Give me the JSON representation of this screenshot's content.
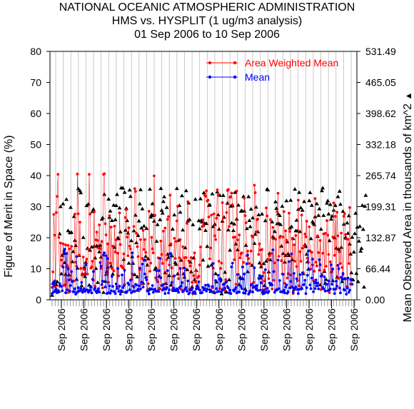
{
  "chart_data": {
    "type": "scatter",
    "title_lines": [
      "NATIONAL OCEANIC ATMOSPHERIC ADMINISTRATION",
      "HMS vs. HYSPLIT (1 ug/m3 analysis)",
      "01 Sep 2006 to 10 Sep 2006"
    ],
    "ylabel_left": "Figure of Merit in Space (%)",
    "ylabel_right": "Mean Observed Area in thousands of km^2",
    "right_axis_marker": "▲",
    "ylim_left": [
      0,
      80
    ],
    "left_ticks": [
      0,
      10,
      20,
      30,
      40,
      50,
      60,
      70,
      80
    ],
    "right_tick_labels": [
      "0.00",
      "66.44",
      "132.87",
      "199.31",
      "265.74",
      "332.18",
      "398.62",
      "465.05",
      "531.49"
    ],
    "x_tick_label": "Sep 2006",
    "x_tick_count": 14,
    "x_count": 360,
    "series": [
      {
        "name": "Area Weighted Mean",
        "color": "#ff0000",
        "values": [
          4.0,
          9.0,
          27.5,
          20.8,
          4.2,
          28.1,
          33.3,
          40.4,
          20.1,
          4.4,
          18.3,
          12.8,
          10.9,
          18.0,
          4.6,
          4.8,
          17.7,
          2.2,
          11.0,
          17.5,
          2.4,
          16.4,
          6.5,
          17.2,
          5.9,
          2.6,
          6.1,
          27.6,
          12.1,
          10.8,
          40.5,
          27.7,
          14.4,
          25.0,
          10.1,
          3.1,
          7.9,
          13.8,
          9.8,
          8.4,
          11.3,
          13.1,
          8.3,
          16.3,
          40.4,
          27.6,
          10.2,
          10.6,
          12.4,
          6.3,
          28.3,
          4.4,
          19.3,
          21.8,
          19.1,
          16.6,
          24.1,
          16.5,
          10.1,
          18.8,
          3.8,
          40.4,
          40.6,
          24.5,
          20.9,
          8.2,
          18.0,
          5.6,
          27.1,
          11.8,
          23.4,
          10.0,
          17.3,
          9.3,
          23.7,
          15.4,
          19.3,
          4.2,
          15.0,
          7.7,
          28.0,
          17.8,
          10.9,
          10.6,
          10.2,
          14.8,
          4.9,
          26.5,
          29.0,
          20.2,
          14.2,
          23.2,
          17.3,
          16.4,
          6.6,
          8.3,
          4.4,
          23.6,
          35.8,
          34.9,
          21.4,
          17.1,
          13.9,
          2.9,
          9.7,
          19.4,
          5.1,
          13.3,
          22.3,
          16.2,
          19.4,
          15.3,
          7.3,
          3.2,
          5.2,
          28.5,
          9.2,
          11.8,
          20.1,
          16.4,
          15.1,
          39.9,
          27.2,
          7.1,
          6.5,
          5.8,
          13.5,
          3.7,
          3.5,
          18.9,
          14.6,
          11.7,
          22.1,
          3.8,
          23.1,
          3.4,
          12.9,
          25.9,
          26.8,
          11.2,
          33.7,
          18.0,
          10.3,
          3.4,
          7.5,
          19.8,
          13.3,
          18.8,
          25.4,
          30.1,
          6.8,
          13.5,
          19.4,
          3.3,
          5.6,
          17.1,
          10.2,
          13.6,
          3.6,
          13.6,
          24.6,
          31.6,
          12.5,
          3.4,
          10.9,
          13.6,
          5.6,
          1.9,
          7.8,
          15.1,
          5.7,
          9.4,
          3.8,
          7.2,
          7.6,
          11.2,
          17.0,
          2.2,
          23.6,
          25.7,
          23.8,
          33.7,
          33.3,
          35.1,
          31.8,
          32.1,
          26.7,
          13.2,
          16.7,
          27.3,
          3.9,
          10.2,
          27.7,
          20.6,
          19.4,
          26.3,
          35.4,
          33.7,
          12.4,
          3.6,
          10.1,
          11.8,
          31.3,
          26.3,
          3.7,
          3.0,
          6.5,
          28.1,
          35.2,
          35.5,
          23.6,
          33.1,
          33.1,
          34.4,
          30.6,
          20.1,
          12.9,
          20.2,
          5.0,
          35.0,
          19.3,
          8.2,
          20.9,
          13.5,
          14.8,
          15.1,
          10.5,
          12.0,
          32.7,
          27.1,
          24.8,
          14.2,
          15.7,
          13.3,
          11.7,
          2.9,
          15.7,
          20.6,
          20.2,
          5.6,
          36.9,
          34.5,
          21.9,
          25.8,
          26.0,
          14.6,
          18.0,
          16.0,
          11.2,
          16.2,
          3.2,
          8.8,
          6.1,
          3.4,
          29.6,
          27.0,
          13.1,
          6.8,
          14.2,
          25.8,
          14.9,
          3.5,
          23.3,
          6.3,
          11.9,
          19.5,
          3.2,
          28.4,
          34.3,
          14.0,
          20.1,
          20.5,
          12.6,
          8.3,
          20.2,
          28.4,
          5.3,
          22.2,
          19.2,
          7.0,
          8.4,
          27.9,
          22.0,
          8.0,
          4.2,
          19.8,
          2.0,
          17.7,
          12.4,
          20.7,
          10.7,
          6.2,
          32.1,
          4.5,
          15.5,
          12.4,
          27.3,
          16.6,
          8.7,
          17.4,
          21.2,
          20.3,
          25.3,
          13.4,
          12.0,
          23.5,
          15.8,
          9.9,
          15.3,
          11.2,
          6.2,
          9.2,
          32.6,
          12.1,
          10.9,
          20.6,
          15.2,
          9.5,
          19.1,
          3.3,
          8.2,
          15.0,
          21.2,
          9.6,
          21.4,
          10.8,
          25.5,
          20.8,
          14.6,
          2.3,
          12.2,
          8.9,
          9.1,
          20.2,
          31.2,
          14.3,
          26.9,
          3.6,
          28.2,
          20.6,
          6.9,
          15.4,
          11.7,
          21.5,
          10.4,
          8.1,
          26.9,
          27.7,
          21.0,
          19.6,
          4.3,
          19.5,
          11.7,
          29.7,
          5.1
        ]
      },
      {
        "name": "Mean",
        "color": "#0000ff",
        "values": [
          2.0,
          5.3,
          2.5,
          6.1,
          3.0,
          3.4,
          2.3,
          2.4,
          2.6,
          5.2,
          4.5,
          4.3,
          2.9,
          10.5,
          15.6,
          16.3,
          2.3,
          14.9,
          3.2,
          9.9,
          6.4,
          2.8,
          4.6,
          9.1,
          5.9,
          2.6,
          2.6,
          3.6,
          1.8,
          13.9,
          2.4,
          3.9,
          2.8,
          2.9,
          3.6,
          5.6,
          2.4,
          2.8,
          3.6,
          2.7,
          11.2,
          3.2,
          3.1,
          2.4,
          2.7,
          3.1,
          4.1,
          2.2,
          6.6,
          9.1,
          3.3,
          3.7,
          2.7,
          2.3,
          3.0,
          3.6,
          2.5,
          12.0,
          10.8,
          4.9,
          6.0,
          14.4,
          15.1,
          4.1,
          14.2,
          2.0,
          13.3,
          2.3,
          4.5,
          2.1,
          2.9,
          7.5,
          4.3,
          2.7,
          2.7,
          2.0,
          5.1,
          3.6,
          10.1,
          2.7,
          4.4,
          1.8,
          2.9,
          8.0,
          3.9,
          4.5,
          9.5,
          2.4,
          2.3,
          2.7,
          5.4,
          4.9,
          3.2,
          6.3,
          2.3,
          15.1,
          2.7,
          4.2,
          2.7,
          5.0,
          4.8,
          3.0,
          3.4,
          4.5,
          10.2,
          3.5,
          5.7,
          11.5,
          4.1,
          12.8,
          8.3,
          7.1,
          6.4,
          2.8,
          2.8,
          1.9,
          3.6,
          3.5,
          3.4,
          4.6,
          2.4,
          3.3,
          3.4,
          2.8,
          9.4,
          2.7,
          2.9,
          9.4,
          13.3,
          7.1,
          4.6,
          3.1,
          4.9,
          3.5,
          2.0,
          3.5,
          3.9,
          9.4,
          2.2,
          3.2,
          14.9,
          14.8,
          5.6,
          3.0,
          3.8,
          7.7,
          3.1,
          2.9,
          3.5,
          3.1,
          2.4,
          3.9,
          10.1,
          4.4,
          5.5,
          2.6,
          2.9,
          10.2,
          3.4,
          3.9,
          2.8,
          6.1,
          1.9,
          2.2,
          3.1,
          3.2,
          3.8,
          2.2,
          2.3,
          2.6,
          2.0,
          3.5,
          4.2,
          3.8,
          5.8,
          3.1,
          2.2,
          2.3,
          2.3,
          4.0,
          3.2,
          3.6,
          4.7,
          2.8,
          3.4,
          4.8,
          4.4,
          3.2,
          3.0,
          2.8,
          4.3,
          11.7,
          2.3,
          2.2,
          6.2,
          3.6,
          2.6,
          7.9,
          2.7,
          6.8,
          6.0,
          2.6,
          3.2,
          4.9,
          5.1,
          3.7,
          5.6,
          5.8,
          4.3,
          3.8,
          2.2,
          3.1,
          2.0,
          10.6,
          11.8,
          3.1,
          2.8,
          3.4,
          4.0,
          2.2,
          8.1,
          2.5,
          2.5,
          6.8,
          4.3,
          3.6,
          10.6,
          2.2,
          8.3,
          2.1,
          2.9,
          11.6,
          14.4,
          1.8,
          2.3,
          2.7,
          4.7,
          5.0,
          2.5,
          4.0,
          10.3,
          4.3,
          3.4,
          4.6,
          3.0,
          6.9,
          7.8,
          3.1,
          5.5,
          7.6,
          1.9,
          2.9,
          2.1,
          9.7,
          2.5,
          3.7,
          2.3,
          2.7,
          5.4,
          4.9,
          4.7,
          4.8,
          16.1,
          9.1,
          2.4,
          3.0,
          3.2,
          3.2,
          12.8,
          3.6,
          6.2,
          2.6,
          2.6,
          2.5,
          8.2,
          3.1,
          2.2,
          4.1,
          4.8,
          2.1,
          2.6,
          12.3,
          3.8,
          5.9,
          14.8,
          4.0,
          2.5,
          8.5,
          3.7,
          4.1,
          6.8,
          3.3,
          2.0,
          3.4,
          8.1,
          3.4,
          3.8,
          8.7,
          4.8,
          4.9,
          6.3,
          2.0,
          3.9,
          7.9,
          15.7,
          9.7,
          4.8,
          3.6,
          7.0,
          13.1,
          2.6,
          5.6,
          3.6,
          6.4,
          4.5,
          5.4,
          3.5,
          12.9,
          11.3,
          7.6,
          7.8,
          3.9,
          3.5,
          7.4,
          2.8,
          5.1,
          5.0,
          2.9,
          6.1,
          3.2,
          3.5,
          11.3,
          5.0,
          9.9,
          3.4,
          2.0,
          3.4,
          6.0,
          4.4,
          11.1,
          10.0,
          3.8,
          2.2,
          7.3,
          6.7,
          8.5,
          3.3,
          3.1,
          6.8,
          1.8,
          3.8,
          7.0,
          2.4,
          3.1,
          6.5,
          6.6,
          5.0
        ]
      },
      {
        "name": "Mean Observed Area",
        "color": "#000000",
        "axis": "right",
        "values": [
          9.6,
          35.6,
          36.6,
          30.3,
          18.6,
          32.2,
          38.8,
          17.9,
          18.4,
          141.0,
          199.3,
          55.6,
          95.0,
          205.3,
          99.0,
          79.4,
          54.2,
          214.7,
          72.2,
          147.8,
          53.0,
          143.3,
          197.5,
          144.2,
          81.5,
          103.1,
          178.1,
          127.0,
          115.9,
          43.7,
          67.6,
          237.6,
          94.8,
          233.4,
          228.9,
          30.2,
          55.1,
          133.3,
          69.2,
          49.8,
          80.2,
          201.4,
          109.8,
          204.7,
          31.4,
          106.0,
          27.7,
          112.8,
          188.7,
          193.5,
          114.6,
          89.5,
          67.0,
          115.4,
          37.1,
          113.4,
          102.6,
          116.4,
          91.3,
          172.3,
          175.5,
          15.6,
          225.4,
          39.5,
          54.4,
          60.7,
          69.3,
          215.3,
          176.4,
          189.7,
          71.9,
          169.5,
          55.2,
          202.4,
          112.0,
          171.2,
          201.6,
          225.2,
          132.3,
          130.8,
          196.4,
          145.3,
          239.4,
          17.9,
          238.9,
          86.3,
          229.9,
          148.8,
          195.5,
          169.4,
          142.6,
          78.3,
          234.8,
          221.1,
          126.3,
          92.0,
          78.0,
          147.5,
          53.8,
          180.9,
          122.0,
          49.1,
          137.4,
          168.6,
          205.3,
          235.5,
          153.7,
          194.5,
          35.6,
          157.6,
          84.9,
          93.0,
          152.5,
          74.3,
          87.7,
          22.4,
          236.6,
          177.0,
          182.1,
          205.6,
          180.3,
          168.2,
          65.1,
          68.6,
          125.1,
          160.8,
          18.5,
          50.4,
          171.2,
          238.0,
          191.3,
          185.3,
          210.2,
          220.4,
          57.9,
          35.1,
          197.4,
          97.3,
          90.7,
          51.7,
          117.7,
          31.4,
          93.9,
          151.0,
          19.8,
          181.6,
          79.6,
          75.8,
          238.1,
          55.3,
          127.2,
          201.6,
          187.3,
          84.6,
          222.6,
          149.2,
          55.5,
          48.4,
          111.3,
          233.2,
          64.4,
          168.8,
          207.1,
          171.7,
          80.3,
          59.7,
          27.7,
          160.6,
          89.6,
          43.3,
          215.0,
          62.9,
          30.4,
          24.3,
          169.2,
          151.9,
          216.2,
          169.7,
          166.3,
          84.9,
          228.9,
          163.2,
          148.3,
          163.3,
          114.2,
          71.8,
          201.9,
          203.3,
          17.8,
          74.2,
          226.7,
          156.6,
          16.7,
          161.3,
          55.9,
          38.1,
          230.6,
          181.7,
          151.0,
          223.3,
          44.4,
          12.8,
          168.0,
          223.2,
          176.5,
          58.8,
          16.8,
          16.4,
          206.5,
          149.3,
          42.7,
          106.2,
          200.2,
          164.3,
          201.1,
          148.1,
          162.1,
          229.7,
          119.3,
          172.5,
          107.0,
          202.3,
          32.5,
          48.5,
          189.3,
          190.6,
          45.3,
          221.1,
          189.8,
          22.9,
          116.5,
          152.4,
          60.1,
          220.5,
          169.6,
          156.3,
          193.9,
          73.7,
          175.2,
          27.4,
          120.7,
          140.2,
          198.1,
          23.0,
          145.5,
          181.7,
          78.8,
          46.3,
          70.7,
          183.5,
          17.6,
          77.3,
          30.4,
          169.1,
          82.7,
          236.6,
          235.0,
          59.5,
          99.4,
          85.3,
          33.3,
          166.4,
          135.1,
          132.0,
          146.1,
          209.6,
          195.5,
          162.8,
          183.8,
          163.0,
          180.3,
          160.9,
          114.7,
          200.0,
          98.9,
          17.8,
          80.6,
          94.6,
          211.8,
          123.9,
          98.6,
          94.7,
          153.5,
          212.8,
          156.3,
          85.6,
          130.7,
          22.6,
          236.6,
          147.5,
          170.1,
          147.2,
          193.3,
          229.6,
          145.8,
          196.8,
          24.8,
          191.5,
          55.8,
          210.2,
          117.4,
          113.9,
          97.3,
          81.1,
          65.7,
          211.9,
          229.3,
          130.7,
          201.9,
          167.1,
          164.0,
          160.9,
          177.5,
          37.1,
          205.4,
          135.6,
          180.5,
          194.5,
          31.8,
          151.0,
          233.2,
          239.2,
          180.5,
          60.5,
          35.6,
          43.4,
          206.5,
          211.7,
          183.5,
          126.3,
          203.7,
          172.6,
          178.8,
          40.8,
          191.7,
          132.7,
          201.8,
          110.5,
          48.5,
          220.5,
          108.0,
          232.1,
          204.3,
          112.0,
          38.9,
          189.1,
          161.6,
          45.1,
          133.3,
          131.3,
          164.3,
          142.3,
          179.7,
          119.1,
          97.7,
          57.6,
          133.7,
          42.6,
          102.2,
          141.6,
          184.9,
          56.4,
          155.3,
          38.7,
          125.4,
          157.0,
          104.1,
          109.9,
          201.9,
          150.7,
          27.2,
          200.0,
          223.4
        ]
      }
    ]
  }
}
